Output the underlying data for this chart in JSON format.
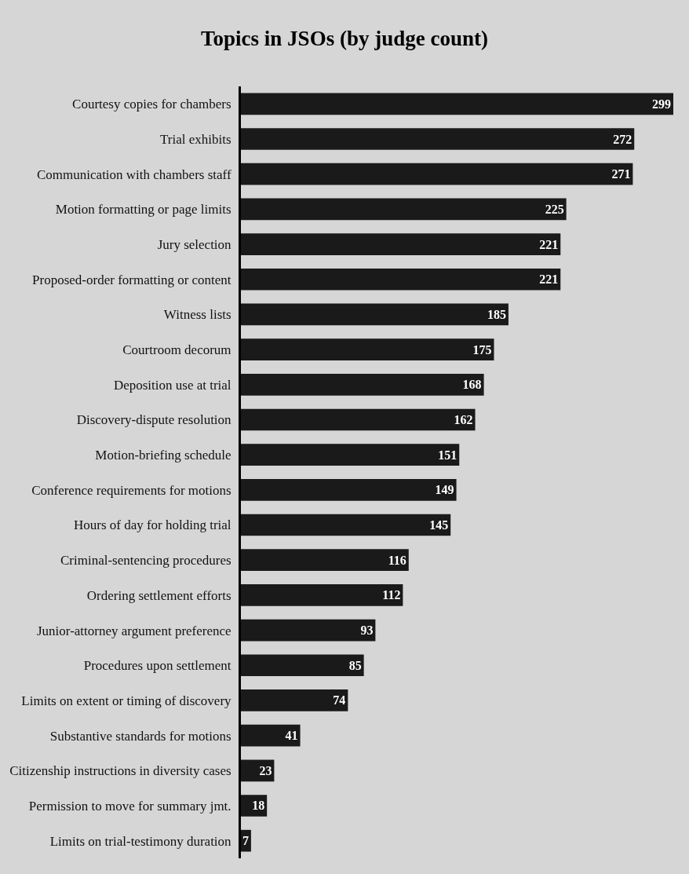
{
  "chart_data": {
    "type": "bar",
    "orientation": "horizontal",
    "title": "Topics in JSOs (by judge count)",
    "categories": [
      "Courtesy copies for chambers",
      "Trial exhibits",
      "Communication with chambers staff",
      "Motion formatting or page limits",
      "Jury selection",
      "Proposed-order formatting or content",
      "Witness lists",
      "Courtroom decorum",
      "Deposition use at trial",
      "Discovery-dispute resolution",
      "Motion-briefing schedule",
      "Conference requirements for motions",
      "Hours of day for holding trial",
      "Criminal-sentencing procedures",
      "Ordering settlement efforts",
      "Junior-attorney argument preference",
      "Procedures upon settlement",
      "Limits on extent or timing of discovery",
      "Substantive standards for motions",
      "Citizenship instructions in diversity cases",
      "Permission to move for summary jmt.",
      "Limits on trial-testimony duration"
    ],
    "values": [
      299,
      272,
      271,
      225,
      221,
      221,
      185,
      175,
      168,
      162,
      151,
      149,
      145,
      116,
      112,
      93,
      85,
      74,
      41,
      23,
      18,
      7
    ],
    "color": "#1a1a1a",
    "data_labels": true,
    "grid": false,
    "legend": false,
    "tick_labels": "y"
  }
}
